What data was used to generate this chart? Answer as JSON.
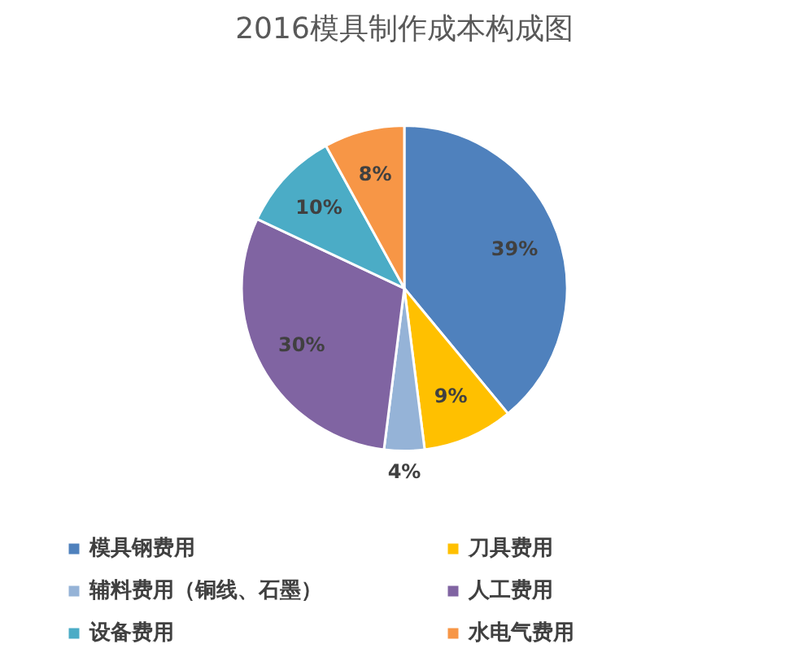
{
  "chart_data": {
    "type": "pie",
    "title": "2016模具制作成本构成图",
    "categories": [
      "模具钢费用",
      "刀具费用",
      "辅料费用（铜线、石墨）",
      "人工费用",
      "设备费用",
      "水电气费用"
    ],
    "values": [
      39,
      9,
      4,
      30,
      10,
      8
    ],
    "colors": [
      "#4f81bd",
      "#ffc000",
      "#95b3d7",
      "#8064a2",
      "#4bacc6",
      "#f79646"
    ],
    "value_labels": [
      "39%",
      "9%",
      "4%",
      "30%",
      "10%",
      "8%"
    ],
    "legend": "bottom"
  }
}
